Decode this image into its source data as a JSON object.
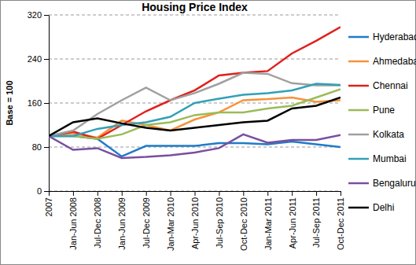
{
  "chart_data": {
    "type": "line",
    "title": "Housing Price Index",
    "y_label": "Base = 100",
    "categories": [
      "2007",
      "Jan-Jun 2008",
      "Jul-Dec 2008",
      "Jan-Jun 2009",
      "Jul-Dec 2009",
      "Jan-Mar 2010",
      "Apr-Jun 2010",
      "Jul-Sep 2010",
      "Oct-Dec 2010",
      "Jan-Mar 2011",
      "Apr-Jun 2011",
      "Jul-Sep 2011",
      "Oct-Dec 2011"
    ],
    "series": [
      {
        "name": "Hyderabad",
        "color": "#1f7bc8",
        "values": [
          100,
          100,
          95,
          63,
          82,
          82,
          82,
          87,
          87,
          85,
          90,
          85,
          80
        ]
      },
      {
        "name": "Ahmedabad",
        "color": "#f7923a",
        "values": [
          100,
          105,
          97,
          128,
          120,
          110,
          130,
          143,
          165,
          167,
          170,
          162,
          165
        ]
      },
      {
        "name": "Chennai",
        "color": "#e0201c",
        "values": [
          100,
          108,
          95,
          120,
          145,
          165,
          183,
          210,
          215,
          218,
          250,
          273,
          298
        ]
      },
      {
        "name": "Pune",
        "color": "#9bbb59",
        "values": [
          100,
          100,
          95,
          103,
          120,
          125,
          138,
          143,
          143,
          150,
          155,
          170,
          185
        ]
      },
      {
        "name": "Kolkata",
        "color": "#a0a0a0",
        "values": [
          100,
          110,
          140,
          165,
          188,
          165,
          178,
          195,
          215,
          213,
          196,
          192,
          192
        ]
      },
      {
        "name": "Mumbai",
        "color": "#31a0b8",
        "values": [
          100,
          100,
          113,
          120,
          125,
          135,
          160,
          168,
          175,
          178,
          183,
          195,
          193
        ]
      },
      {
        "name": "Bengaluru",
        "color": "#7a4f9e",
        "values": [
          100,
          75,
          78,
          60,
          62,
          65,
          70,
          78,
          103,
          88,
          93,
          93,
          102
        ]
      },
      {
        "name": "Delhi",
        "color": "#000000",
        "values": [
          100,
          125,
          132,
          123,
          115,
          110,
          115,
          120,
          125,
          128,
          150,
          155,
          170
        ]
      }
    ],
    "ylim": [
      0,
      320
    ],
    "yticks": [
      0,
      80,
      160,
      240,
      320
    ],
    "grid": true,
    "legend": "right"
  }
}
